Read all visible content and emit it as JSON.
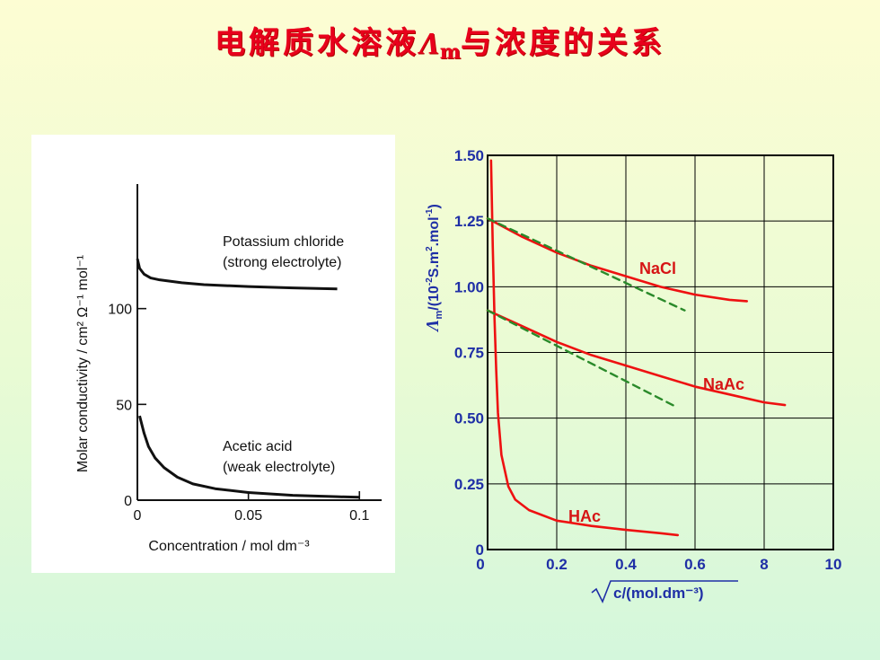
{
  "title": {
    "prefix": "电解质水溶液",
    "symbol": "Λ",
    "subscript": "m",
    "suffix": "与浓度的关系"
  },
  "chart_data": [
    {
      "type": "line",
      "title": "",
      "xlabel": "Concentration / mol dm⁻³",
      "ylabel": "Molar conductivity / cm² Ω⁻¹ mol⁻¹",
      "x_ticks": [
        "0",
        "0.05",
        "0.1"
      ],
      "y_ticks": [
        "0",
        "50",
        "100"
      ],
      "xlim": [
        0,
        0.11
      ],
      "ylim": [
        0,
        165
      ],
      "grid": false,
      "series": [
        {
          "name": "Potassium chloride\n(strong electrolyte)",
          "x": [
            0.0,
            0.001,
            0.003,
            0.006,
            0.01,
            0.02,
            0.03,
            0.05,
            0.07,
            0.09
          ],
          "y": [
            126,
            121,
            118,
            116,
            115,
            113.5,
            112.5,
            111.5,
            110.8,
            110.3
          ]
        },
        {
          "name": "Acetic acid\n(weak electrolyte)",
          "x": [
            0.001,
            0.003,
            0.005,
            0.008,
            0.012,
            0.018,
            0.025,
            0.035,
            0.05,
            0.07,
            0.09,
            0.1
          ],
          "y": [
            44,
            35,
            28,
            22,
            17,
            12,
            8.5,
            6,
            4,
            2.5,
            1.8,
            1.5
          ]
        }
      ]
    },
    {
      "type": "line",
      "title": "",
      "xlabel": "c/(mol.dm⁻³)",
      "ylabel_prefix": "Λ",
      "ylabel_sub": "m",
      "ylabel_rest": "/(10",
      "ylabel_sup1": "-2",
      "ylabel_mid": "S.m",
      "ylabel_sup2": "2",
      "ylabel_mid2": ".mol",
      "ylabel_sup3": "-1",
      "ylabel_end": ")",
      "x_ticks": [
        "0",
        "0.2",
        "0.4",
        "0.6",
        "8",
        "10"
      ],
      "y_ticks": [
        "0",
        "0.25",
        "0.50",
        "0.75",
        "1.00",
        "1.25",
        "1.50"
      ],
      "xlim": [
        0,
        1.0
      ],
      "ylim": [
        0,
        1.5
      ],
      "grid": true,
      "series": [
        {
          "name": "NaCl",
          "color": "#ee1111",
          "x": [
            0.0,
            0.1,
            0.2,
            0.3,
            0.4,
            0.5,
            0.6,
            0.7,
            0.75
          ],
          "y": [
            1.26,
            1.19,
            1.13,
            1.08,
            1.04,
            1.0,
            0.97,
            0.95,
            0.945
          ]
        },
        {
          "name": "NaAc",
          "color": "#ee1111",
          "x": [
            0.0,
            0.1,
            0.2,
            0.3,
            0.4,
            0.5,
            0.6,
            0.7,
            0.8,
            0.86
          ],
          "y": [
            0.91,
            0.85,
            0.79,
            0.74,
            0.7,
            0.66,
            0.62,
            0.59,
            0.56,
            0.55
          ]
        },
        {
          "name": "HAc",
          "color": "#ee1111",
          "x": [
            0.01,
            0.012,
            0.015,
            0.02,
            0.025,
            0.03,
            0.04,
            0.06,
            0.08,
            0.12,
            0.2,
            0.3,
            0.4,
            0.5,
            0.55
          ],
          "y": [
            1.48,
            1.35,
            1.15,
            0.88,
            0.68,
            0.52,
            0.36,
            0.24,
            0.19,
            0.15,
            0.11,
            0.09,
            0.075,
            0.062,
            0.055
          ]
        },
        {
          "name": "",
          "style": "dashed",
          "color": "#2a8a2a",
          "x": [
            0.0,
            0.57
          ],
          "y": [
            1.26,
            0.91
          ]
        },
        {
          "name": "",
          "style": "dashed",
          "color": "#2a8a2a",
          "x": [
            0.0,
            0.55
          ],
          "y": [
            0.91,
            0.54
          ]
        }
      ]
    }
  ]
}
